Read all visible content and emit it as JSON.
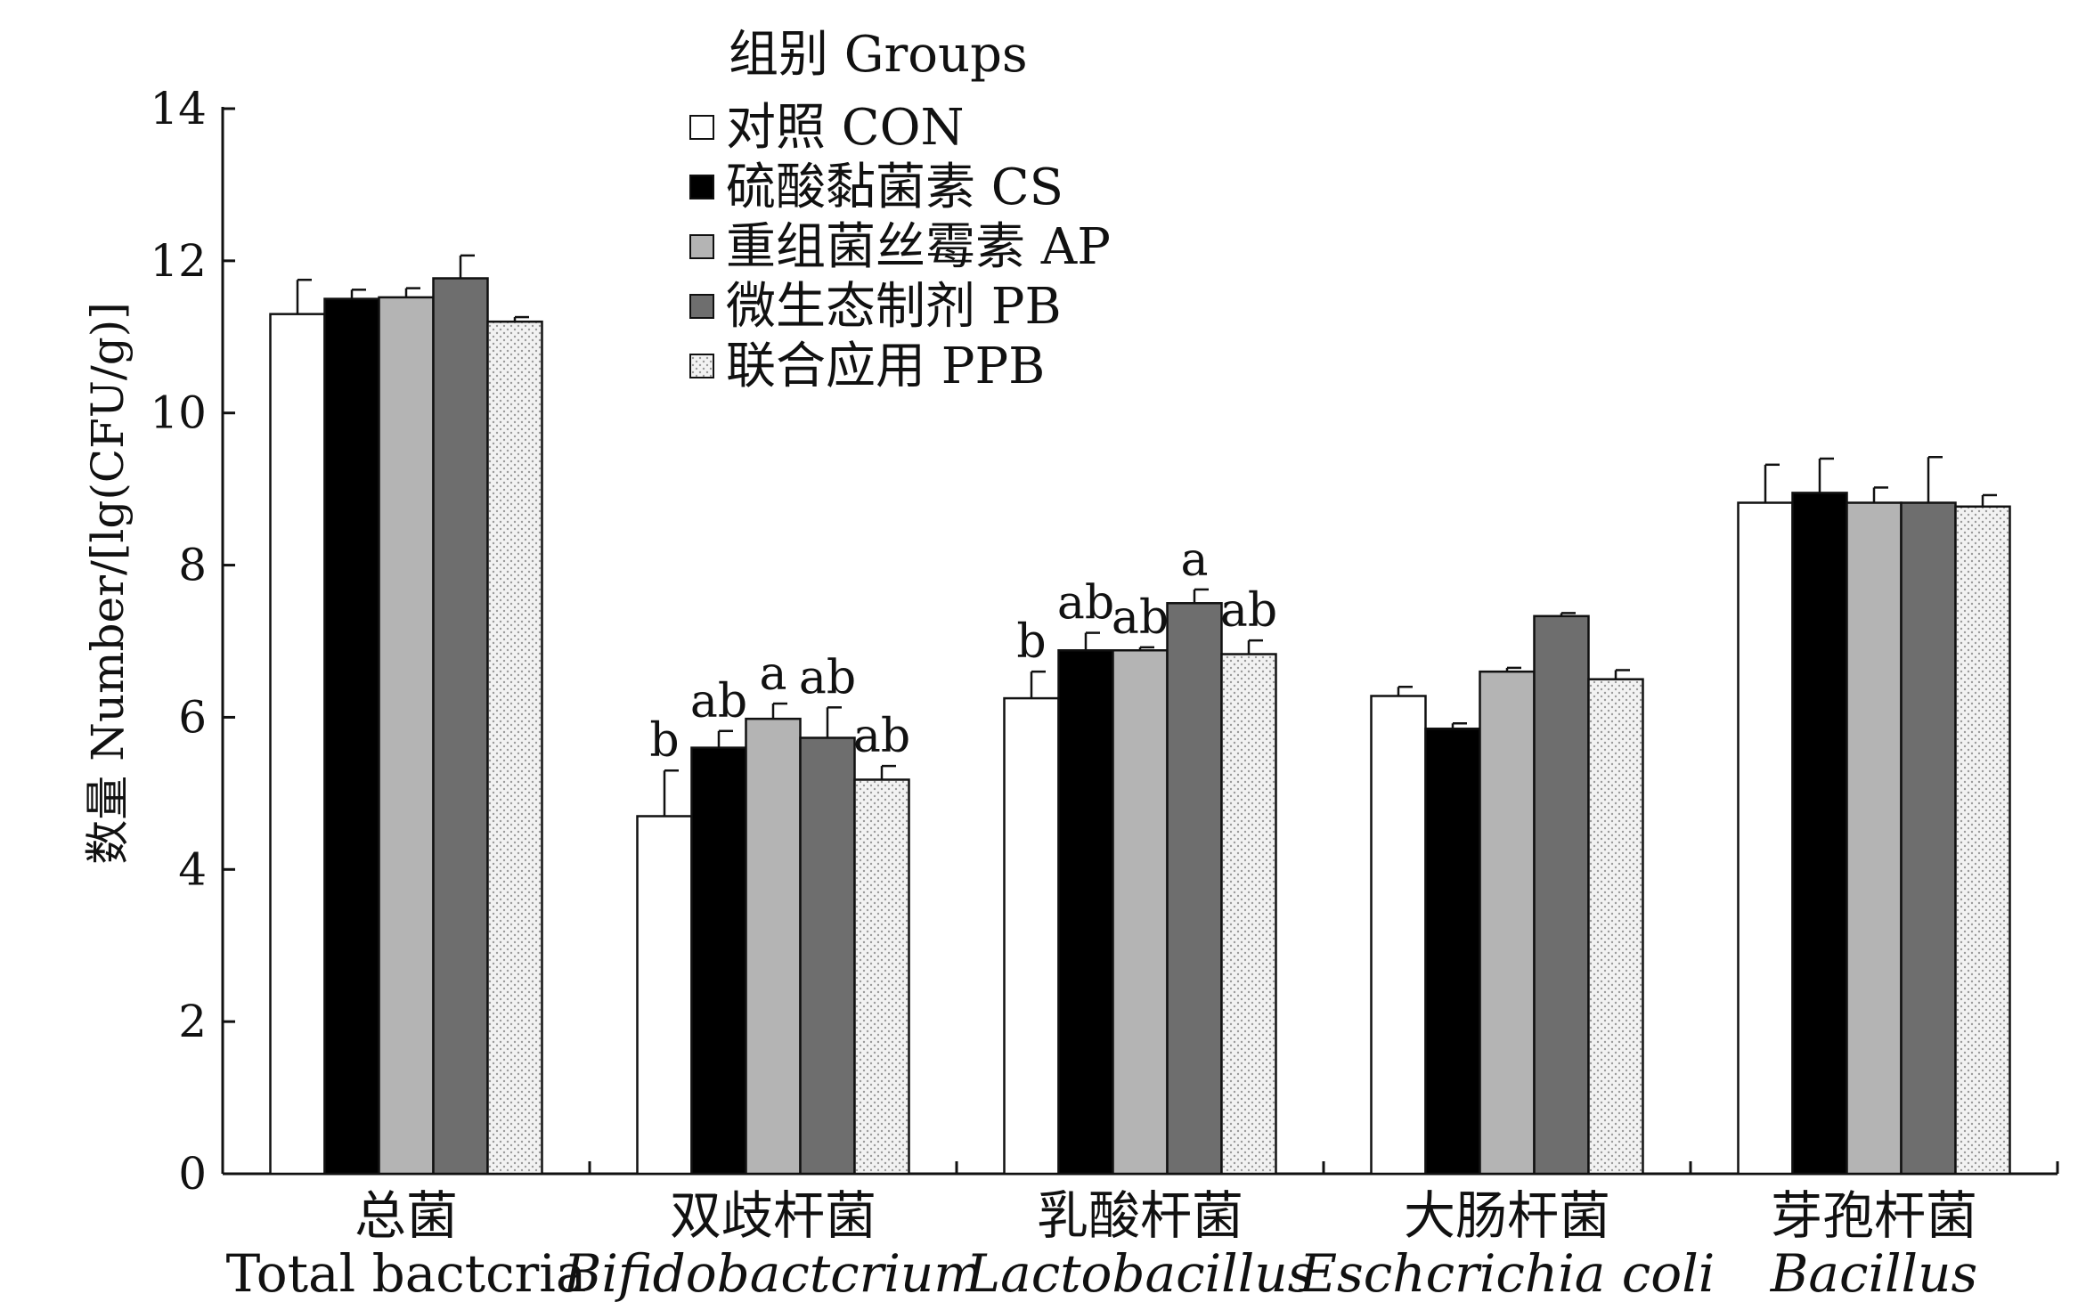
{
  "chart_data": {
    "type": "bar",
    "ylabel": "数量 Number/[lg(CFU/g)]",
    "ylim": [
      0,
      14
    ],
    "yticks": [
      0,
      2,
      4,
      6,
      8,
      10,
      12,
      14
    ],
    "grid": false,
    "legend": {
      "title": "组别 Groups",
      "placement": "top-center"
    },
    "categories": [
      {
        "cn": "总菌",
        "en": "Total bactcria",
        "italic": false
      },
      {
        "cn": "双歧杆菌",
        "en": "Bifidobactcrium",
        "italic": true
      },
      {
        "cn": "乳酸杆菌",
        "en": "Lactobacillus",
        "italic": true
      },
      {
        "cn": "大肠杆菌",
        "en": "Eschcrichia coli",
        "italic": true
      },
      {
        "cn": "芽孢杆菌",
        "en": "Bacillus",
        "italic": true
      }
    ],
    "series": [
      {
        "name": "对照  CON",
        "style": "white",
        "values": [
          11.3,
          4.7,
          6.25,
          6.28,
          8.82
        ],
        "errors": [
          0.45,
          0.6,
          0.35,
          0.12,
          0.5
        ],
        "labels": [
          "",
          "b",
          "b",
          "",
          ""
        ]
      },
      {
        "name": "硫酸黏菌素  CS",
        "style": "black",
        "values": [
          11.5,
          5.6,
          6.88,
          5.85,
          8.95
        ],
        "errors": [
          0.12,
          0.22,
          0.23,
          0.07,
          0.45
        ],
        "labels": [
          "",
          "ab",
          "ab",
          "",
          ""
        ]
      },
      {
        "name": "重组菌丝霉素  AP",
        "style": "lightgray",
        "values": [
          11.52,
          5.98,
          6.88,
          6.6,
          8.82
        ],
        "errors": [
          0.12,
          0.2,
          0.04,
          0.05,
          0.2
        ],
        "labels": [
          "",
          "a",
          "ab",
          "",
          ""
        ]
      },
      {
        "name": "微生态制剂  PB",
        "style": "darkgray",
        "values": [
          11.77,
          5.73,
          7.5,
          7.33,
          8.82
        ],
        "errors": [
          0.3,
          0.4,
          0.18,
          0.04,
          0.6
        ],
        "labels": [
          "",
          "ab",
          "a",
          "",
          ""
        ]
      },
      {
        "name": "联合应用  PPB",
        "style": "dotted",
        "values": [
          11.2,
          5.18,
          6.83,
          6.5,
          8.77
        ],
        "errors": [
          0.06,
          0.18,
          0.18,
          0.12,
          0.15
        ],
        "labels": [
          "",
          "ab",
          "ab",
          "",
          ""
        ]
      }
    ],
    "colors": {
      "white": "#ffffff",
      "black": "#000000",
      "lightgray": "#b4b4b4",
      "darkgray": "#6e6e6e",
      "dotted": "#ececec",
      "stroke": "#111111"
    }
  }
}
